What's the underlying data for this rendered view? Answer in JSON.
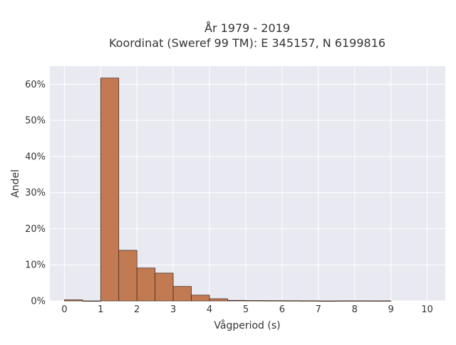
{
  "chart_data": {
    "type": "bar",
    "title": [
      "År 1979 - 2019",
      "Koordinat (Sweref 99 TM): E 345157, N 6199816"
    ],
    "xlabel": "Vågperiod (s)",
    "ylabel": "Andel",
    "xlim": [
      -0.4,
      10.5
    ],
    "ylim": [
      0,
      0.65
    ],
    "x_ticks": [
      0,
      1,
      2,
      3,
      4,
      5,
      6,
      7,
      8,
      9,
      10
    ],
    "y_ticks": [
      0,
      0.1,
      0.2,
      0.3,
      0.4,
      0.5,
      0.6
    ],
    "y_tick_labels": [
      "0%",
      "10%",
      "20%",
      "30%",
      "40%",
      "50%",
      "60%"
    ],
    "bin_width": 0.5,
    "bins": [
      {
        "start": 0.0,
        "value": 0.003
      },
      {
        "start": 0.5,
        "value": 0.0
      },
      {
        "start": 1.0,
        "value": 0.617
      },
      {
        "start": 1.5,
        "value": 0.14
      },
      {
        "start": 2.0,
        "value": 0.091
      },
      {
        "start": 2.5,
        "value": 0.077
      },
      {
        "start": 3.0,
        "value": 0.04
      },
      {
        "start": 3.5,
        "value": 0.016
      },
      {
        "start": 4.0,
        "value": 0.006
      },
      {
        "start": 4.5,
        "value": 0.0015
      },
      {
        "start": 5.0,
        "value": 0.001
      },
      {
        "start": 5.5,
        "value": 0.0008
      },
      {
        "start": 6.0,
        "value": 0.0006
      },
      {
        "start": 6.5,
        "value": 0.0004
      },
      {
        "start": 7.0,
        "value": 0.0
      },
      {
        "start": 7.5,
        "value": 0.0003
      },
      {
        "start": 8.0,
        "value": 0.0003
      },
      {
        "start": 8.5,
        "value": 0.0002
      }
    ],
    "grid": true,
    "colors": {
      "bar_fill": "#c17a52",
      "bar_edge": "#3a2518",
      "plot_background": "#e9e9f2",
      "grid": "#ffffff",
      "text": "#333333"
    }
  }
}
